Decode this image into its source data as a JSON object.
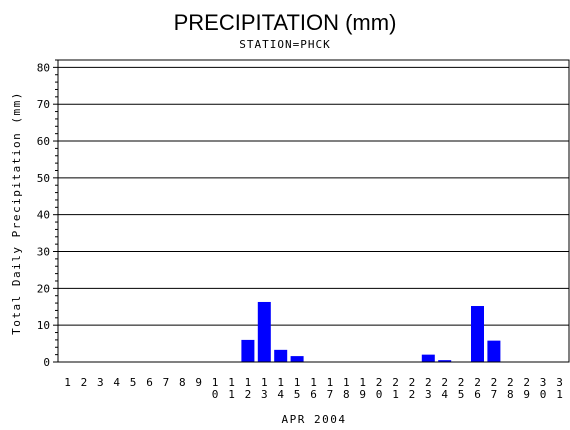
{
  "chart_data": {
    "type": "bar",
    "title": "PRECIPITATION (mm)",
    "subtitle": "STATION=PHCK",
    "xlabel": "APR 2004",
    "ylabel": "Total Daily Precipitation (mm)",
    "ylim": [
      0,
      82
    ],
    "yticks": [
      0,
      10,
      20,
      30,
      40,
      50,
      60,
      70,
      80
    ],
    "grid": true,
    "bar_color": "#0000ff",
    "categories": [
      "1",
      "2",
      "3",
      "4",
      "5",
      "6",
      "7",
      "8",
      "9",
      "10",
      "11",
      "12",
      "13",
      "14",
      "15",
      "16",
      "17",
      "18",
      "19",
      "20",
      "21",
      "22",
      "23",
      "24",
      "25",
      "26",
      "27",
      "28",
      "29",
      "30",
      "31"
    ],
    "values": [
      0,
      0,
      0,
      0,
      0,
      0,
      0,
      0,
      0,
      0,
      0,
      6.0,
      16.3,
      3.3,
      1.6,
      0,
      0,
      0,
      0,
      0,
      0,
      0,
      2.0,
      0.5,
      0,
      15.2,
      5.8,
      0,
      0,
      0,
      0
    ]
  }
}
